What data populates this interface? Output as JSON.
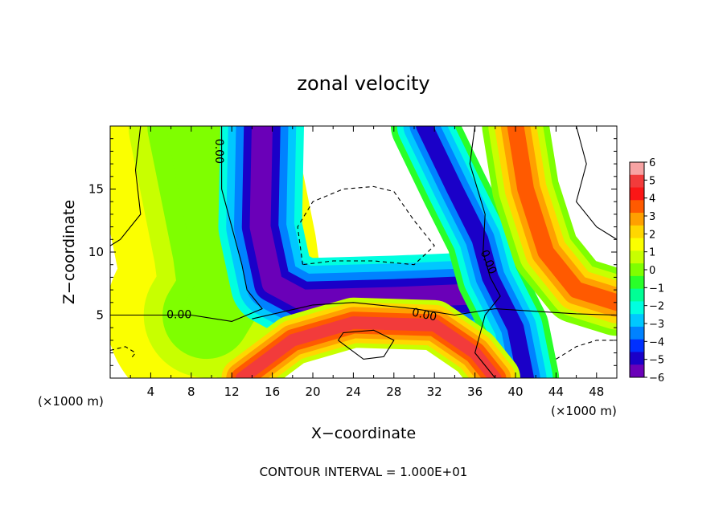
{
  "chart_data": {
    "type": "heatmap",
    "title": "zonal velocity",
    "xlabel": "X−coordinate",
    "ylabel": "Z−coordinate",
    "x_unit_label_left": "(×1000 m)",
    "x_unit_label_right": "(×1000 m)",
    "footer": "CONTOUR INTERVAL = 1.000E+01",
    "xlim": [
      0,
      50
    ],
    "ylim": [
      0,
      20
    ],
    "xticks": [
      4,
      8,
      12,
      16,
      20,
      24,
      28,
      32,
      36,
      40,
      44,
      48
    ],
    "yticks": [
      5,
      10,
      15
    ],
    "colorbar": {
      "min": -6,
      "max": 6,
      "ticks": [
        6,
        5,
        4,
        3,
        2,
        1,
        0,
        -1,
        -2,
        -3,
        -4,
        -5,
        -6
      ],
      "tick_labels": [
        "6",
        "5",
        "4",
        "3",
        "2",
        "1",
        "0",
        "−1",
        "−2",
        "−3",
        "−4",
        "−5",
        "−6"
      ],
      "colors": [
        "#f7a3a3",
        "#f23b3b",
        "#fb1616",
        "#ff5a00",
        "#ffa000",
        "#ffd700",
        "#fbff00",
        "#c8ff00",
        "#7fff00",
        "#29ff29",
        "#00ff95",
        "#00ffe0",
        "#00c8ff",
        "#0082ff",
        "#0030ff",
        "#1a00c8",
        "#6a00b8"
      ]
    },
    "contour_labels": [
      {
        "text": "0.00",
        "x": 10.7,
        "z": 18.0,
        "rotate": 90
      },
      {
        "text": "0.00",
        "x": 6.8,
        "z": 5.0,
        "rotate": 0
      },
      {
        "text": "0.00",
        "x": 31.0,
        "z": 5.0,
        "rotate": 12
      },
      {
        "text": "0.00",
        "x": 37.3,
        "z": 9.2,
        "rotate": 68
      }
    ],
    "features": [
      {
        "name": "left column",
        "value": 0,
        "path": [
          [
            8,
            20
          ],
          [
            9.5,
            14
          ],
          [
            10.5,
            10
          ],
          [
            11,
            7
          ],
          [
            9.5,
            5
          ]
        ],
        "width": 12
      },
      {
        "name": "descending jet",
        "value": -6,
        "path": [
          [
            15,
            20
          ],
          [
            14.8,
            12
          ],
          [
            16,
            7.5
          ],
          [
            19,
            6.2
          ],
          [
            28,
            6.4
          ],
          [
            37,
            6.7
          ]
        ],
        "width": 5
      },
      {
        "name": "right column",
        "value": -5,
        "path": [
          [
            31,
            20
          ],
          [
            34,
            15
          ],
          [
            36.5,
            11
          ],
          [
            37.5,
            8
          ],
          [
            40,
            4
          ],
          [
            41,
            0
          ]
        ],
        "width": 4
      },
      {
        "name": "lower jet",
        "value": 5,
        "path": [
          [
            13,
            0
          ],
          [
            18,
            3
          ],
          [
            24,
            4.4
          ],
          [
            32,
            4.2
          ],
          [
            36,
            2
          ],
          [
            38,
            0
          ]
        ],
        "width": 3
      },
      {
        "name": "right warm band",
        "value": 4,
        "path": [
          [
            40,
            20
          ],
          [
            41,
            15
          ],
          [
            43,
            10
          ],
          [
            46,
            7
          ],
          [
            50,
            6
          ]
        ],
        "width": 4
      }
    ],
    "grid": false
  }
}
